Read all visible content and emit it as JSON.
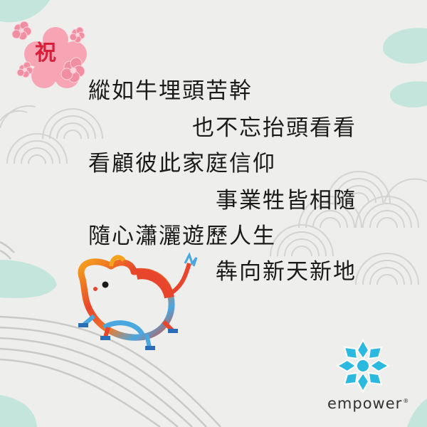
{
  "badge": {
    "char": "祝"
  },
  "poem": {
    "lines": [
      "縱如牛埋頭苦幹",
      "也不忘抬頭看看",
      "看顧彼此家庭信仰",
      "事業牲皆相隨",
      "隨心瀟灑遊歷人生",
      "犇向新天新地"
    ]
  },
  "brand": {
    "name": "empower",
    "mark": "®"
  },
  "colors": {
    "background": "#eeeeec",
    "mint": "#bfe3d8",
    "blossom": "#f7a4b4",
    "badge_text": "#d71f3a",
    "text": "#1a1a1a",
    "logo": "#2bb9e0"
  }
}
